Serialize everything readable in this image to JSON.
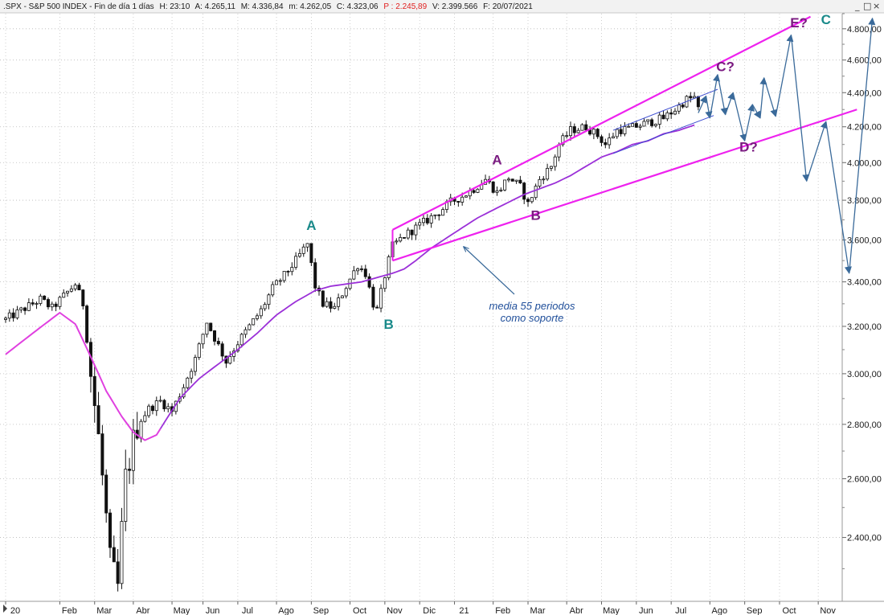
{
  "header": {
    "title": ".SPX - S&P 500 INDEX - Fin de día 1 días",
    "h": "H: 23:10",
    "a": "A: 4.265,11",
    "m": "M: 4.336,84",
    "mm": "m: 4.262,05",
    "c": "C: 4.323,06",
    "p": "P : 2.245,89",
    "v": "V: 2.399.566",
    "f": "F: 20/07/2021"
  },
  "window_controls": {
    "minimize": "_",
    "restore": "□",
    "close": "×"
  },
  "colors": {
    "candle": "#111111",
    "ma55": "#9b30d8",
    "ma_early": "#e040e0",
    "channel": "#ee22ee",
    "small_channel": "#3a4ad0",
    "projection": "#3a6a9a",
    "label_teal": "#1a8a8a",
    "label_purple": "#7a1a80",
    "note": "#1f4e9a",
    "header_red": "#e02020"
  },
  "annotation": {
    "line1": "media 55 periodos",
    "line2": "como soporte"
  },
  "chart_data": {
    "type": "candlestick",
    "title": ".SPX - S&P 500 INDEX",
    "y_axis_side": "right",
    "ylim": [
      2200,
      4900
    ],
    "yticks": [
      2400,
      2600,
      2800,
      3000,
      3200,
      3400,
      3600,
      3800,
      4000,
      4200,
      4400,
      4600,
      4800
    ],
    "ytick_labels": [
      "2.400,00",
      "2.600,00",
      "2.800,00",
      "3.000,00",
      "3.200,00",
      "3.400,00",
      "3.600,00",
      "3.800,00",
      "4.000,00",
      "4.200,00",
      "4.400,00",
      "4.600,00",
      "4.800,00"
    ],
    "x_labels": [
      "20",
      "Feb",
      "Mar",
      "Abr",
      "May",
      "Jun",
      "Jul",
      "Ago",
      "Sep",
      "Oct",
      "Nov",
      "Dic",
      "21",
      "Feb",
      "Mar",
      "Abr",
      "May",
      "Jun",
      "Jul",
      "Ago",
      "Sep",
      "Oct",
      "Nov"
    ],
    "x_label_index": [
      0,
      14,
      23,
      33,
      43,
      51,
      60,
      70,
      79,
      89,
      98,
      107,
      116,
      126,
      135,
      145,
      154,
      163,
      172,
      182,
      191,
      200,
      210
    ],
    "price_waypoints": [
      [
        0,
        3230
      ],
      [
        9,
        3320
      ],
      [
        12,
        3280
      ],
      [
        18,
        3390
      ],
      [
        20,
        3300
      ],
      [
        22,
        3000
      ],
      [
        24,
        2750
      ],
      [
        27,
        2320
      ],
      [
        29,
        2240
      ],
      [
        31,
        2600
      ],
      [
        34,
        2800
      ],
      [
        37,
        2860
      ],
      [
        40,
        2890
      ],
      [
        43,
        2850
      ],
      [
        46,
        2950
      ],
      [
        49,
        3060
      ],
      [
        52,
        3220
      ],
      [
        54,
        3150
      ],
      [
        57,
        3050
      ],
      [
        60,
        3130
      ],
      [
        63,
        3200
      ],
      [
        66,
        3270
      ],
      [
        69,
        3370
      ],
      [
        72,
        3430
      ],
      [
        75,
        3500
      ],
      [
        78,
        3580
      ],
      [
        80,
        3380
      ],
      [
        82,
        3300
      ],
      [
        85,
        3280
      ],
      [
        88,
        3380
      ],
      [
        91,
        3480
      ],
      [
        93,
        3440
      ],
      [
        95,
        3300
      ],
      [
        96,
        3270
      ],
      [
        98,
        3430
      ],
      [
        100,
        3570
      ],
      [
        103,
        3620
      ],
      [
        106,
        3660
      ],
      [
        109,
        3700
      ],
      [
        112,
        3740
      ],
      [
        115,
        3790
      ],
      [
        118,
        3820
      ],
      [
        121,
        3860
      ],
      [
        124,
        3910
      ],
      [
        127,
        3840
      ],
      [
        130,
        3920
      ],
      [
        133,
        3870
      ],
      [
        135,
        3780
      ],
      [
        138,
        3910
      ],
      [
        141,
        3980
      ],
      [
        143,
        4100
      ],
      [
        146,
        4180
      ],
      [
        150,
        4200
      ],
      [
        153,
        4150
      ],
      [
        155,
        4100
      ],
      [
        158,
        4180
      ],
      [
        161,
        4190
      ],
      [
        164,
        4210
      ],
      [
        167,
        4230
      ],
      [
        170,
        4250
      ],
      [
        173,
        4300
      ],
      [
        176,
        4360
      ],
      [
        178,
        4370
      ],
      [
        179,
        4300
      ]
    ],
    "ma55_waypoints": [
      [
        0,
        3080
      ],
      [
        7,
        3170
      ],
      [
        14,
        3260
      ],
      [
        18,
        3210
      ],
      [
        22,
        3070
      ],
      [
        26,
        2930
      ],
      [
        30,
        2830
      ],
      [
        33,
        2770
      ],
      [
        36,
        2740
      ],
      [
        39,
        2760
      ],
      [
        42,
        2830
      ],
      [
        45,
        2900
      ],
      [
        50,
        2980
      ],
      [
        55,
        3040
      ],
      [
        60,
        3100
      ],
      [
        65,
        3170
      ],
      [
        70,
        3250
      ],
      [
        75,
        3310
      ],
      [
        80,
        3360
      ],
      [
        84,
        3380
      ],
      [
        88,
        3390
      ],
      [
        92,
        3400
      ],
      [
        96,
        3420
      ],
      [
        100,
        3440
      ],
      [
        103,
        3460
      ],
      [
        106,
        3500
      ],
      [
        110,
        3560
      ],
      [
        114,
        3610
      ],
      [
        118,
        3660
      ],
      [
        122,
        3710
      ],
      [
        126,
        3750
      ],
      [
        130,
        3790
      ],
      [
        134,
        3830
      ],
      [
        138,
        3860
      ],
      [
        142,
        3890
      ],
      [
        146,
        3930
      ],
      [
        150,
        3980
      ],
      [
        154,
        4030
      ],
      [
        158,
        4060
      ],
      [
        162,
        4100
      ],
      [
        166,
        4120
      ],
      [
        170,
        4160
      ],
      [
        174,
        4180
      ],
      [
        178,
        4210
      ]
    ],
    "wave_labels": [
      {
        "text": "A",
        "x": 79,
        "y": 3650,
        "color": "teal"
      },
      {
        "text": "B",
        "x": 99,
        "y": 3190,
        "color": "teal"
      },
      {
        "text": "A",
        "x": 127,
        "y": 3990,
        "color": "purple"
      },
      {
        "text": "B",
        "x": 137,
        "y": 3700,
        "color": "purple"
      },
      {
        "text": "C?",
        "x": 186,
        "y": 4530,
        "color": "purple"
      },
      {
        "text": "D?",
        "x": 192,
        "y": 4060,
        "color": "purple"
      },
      {
        "text": "E?",
        "x": 205,
        "y": 4810,
        "color": "purple"
      },
      {
        "text": "C",
        "x": 212,
        "y": 4830,
        "color": "teal"
      }
    ],
    "channel_lines": [
      {
        "name": "upper",
        "from": [
          100,
          3650
        ],
        "to": [
          208,
          4880
        ]
      },
      {
        "name": "lower",
        "from": [
          100,
          3500
        ],
        "to": [
          220,
          4300
        ]
      }
    ],
    "small_channel_lines": [
      {
        "from": [
          157,
          4180
        ],
        "to": [
          184,
          4420
        ]
      },
      {
        "from": [
          157,
          4050
        ],
        "to": [
          183,
          4265
        ]
      }
    ],
    "projection_path": [
      [
        179,
        4280
      ],
      [
        181,
        4380
      ],
      [
        182,
        4250
      ],
      [
        184,
        4510
      ],
      [
        186,
        4270
      ],
      [
        188,
        4400
      ],
      [
        191,
        4120
      ],
      [
        193,
        4330
      ],
      [
        195,
        4250
      ],
      [
        196,
        4490
      ],
      [
        199,
        4260
      ],
      [
        203,
        4760
      ],
      [
        207,
        3900
      ],
      [
        212,
        4230
      ],
      [
        218,
        3440
      ],
      [
        224,
        4870
      ]
    ]
  }
}
